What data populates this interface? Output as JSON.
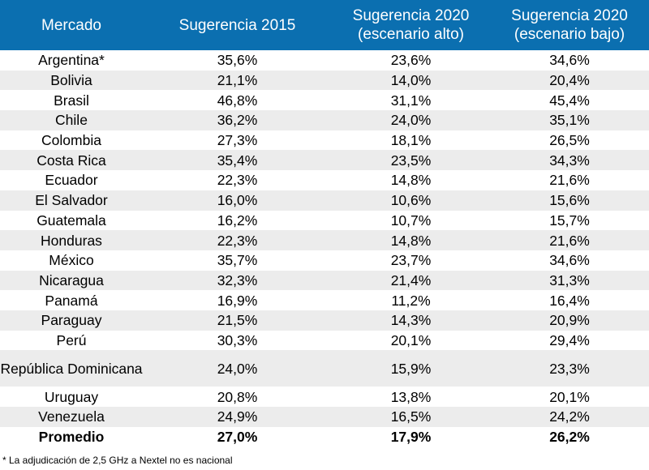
{
  "table": {
    "headers": [
      {
        "line1": "Mercado",
        "line2": ""
      },
      {
        "line1": "Sugerencia 2015",
        "line2": ""
      },
      {
        "line1": "Sugerencia 2020",
        "line2": "(escenario alto)"
      },
      {
        "line1": "Sugerencia 2020",
        "line2": "(escenario bajo)"
      }
    ],
    "rows": [
      {
        "mercado": "Argentina*",
        "s2015": "35,6%",
        "alto": "23,6%",
        "bajo": "34,6%"
      },
      {
        "mercado": "Bolivia",
        "s2015": "21,1%",
        "alto": "14,0%",
        "bajo": "20,4%"
      },
      {
        "mercado": "Brasil",
        "s2015": "46,8%",
        "alto": "31,1%",
        "bajo": "45,4%"
      },
      {
        "mercado": "Chile",
        "s2015": "36,2%",
        "alto": "24,0%",
        "bajo": "35,1%"
      },
      {
        "mercado": "Colombia",
        "s2015": "27,3%",
        "alto": "18,1%",
        "bajo": "26,5%"
      },
      {
        "mercado": "Costa Rica",
        "s2015": "35,4%",
        "alto": "23,5%",
        "bajo": "34,3%"
      },
      {
        "mercado": "Ecuador",
        "s2015": "22,3%",
        "alto": "14,8%",
        "bajo": "21,6%"
      },
      {
        "mercado": "El Salvador",
        "s2015": "16,0%",
        "alto": "10,6%",
        "bajo": "15,6%"
      },
      {
        "mercado": "Guatemala",
        "s2015": "16,2%",
        "alto": "10,7%",
        "bajo": "15,7%"
      },
      {
        "mercado": "Honduras",
        "s2015": "22,3%",
        "alto": "14,8%",
        "bajo": "21,6%"
      },
      {
        "mercado": "México",
        "s2015": "35,7%",
        "alto": "23,7%",
        "bajo": "34,6%"
      },
      {
        "mercado": "Nicaragua",
        "s2015": "32,3%",
        "alto": "21,4%",
        "bajo": "31,3%"
      },
      {
        "mercado": "Panamá",
        "s2015": "16,9%",
        "alto": "11,2%",
        "bajo": "16,4%"
      },
      {
        "mercado": "Paraguay",
        "s2015": "21,5%",
        "alto": "14,3%",
        "bajo": "20,9%"
      },
      {
        "mercado": "Perú",
        "s2015": "30,3%",
        "alto": "20,1%",
        "bajo": "29,4%"
      },
      {
        "mercado": "República Dominicana",
        "s2015": "24,0%",
        "alto": "15,9%",
        "bajo": "23,3%"
      },
      {
        "mercado": "Uruguay",
        "s2015": "20,8%",
        "alto": "13,8%",
        "bajo": "20,1%"
      },
      {
        "mercado": "Venezuela",
        "s2015": "24,9%",
        "alto": "16,5%",
        "bajo": "24,2%"
      }
    ],
    "average": {
      "mercado": "Promedio",
      "s2015": "27,0%",
      "alto": "17,9%",
      "bajo": "26,2%"
    }
  },
  "footnote": "* La adjudicación de 2,5 GHz a Nextel no es nacional",
  "colors": {
    "header_bg": "#0b6fb0",
    "stripe_bg": "#ececec"
  }
}
